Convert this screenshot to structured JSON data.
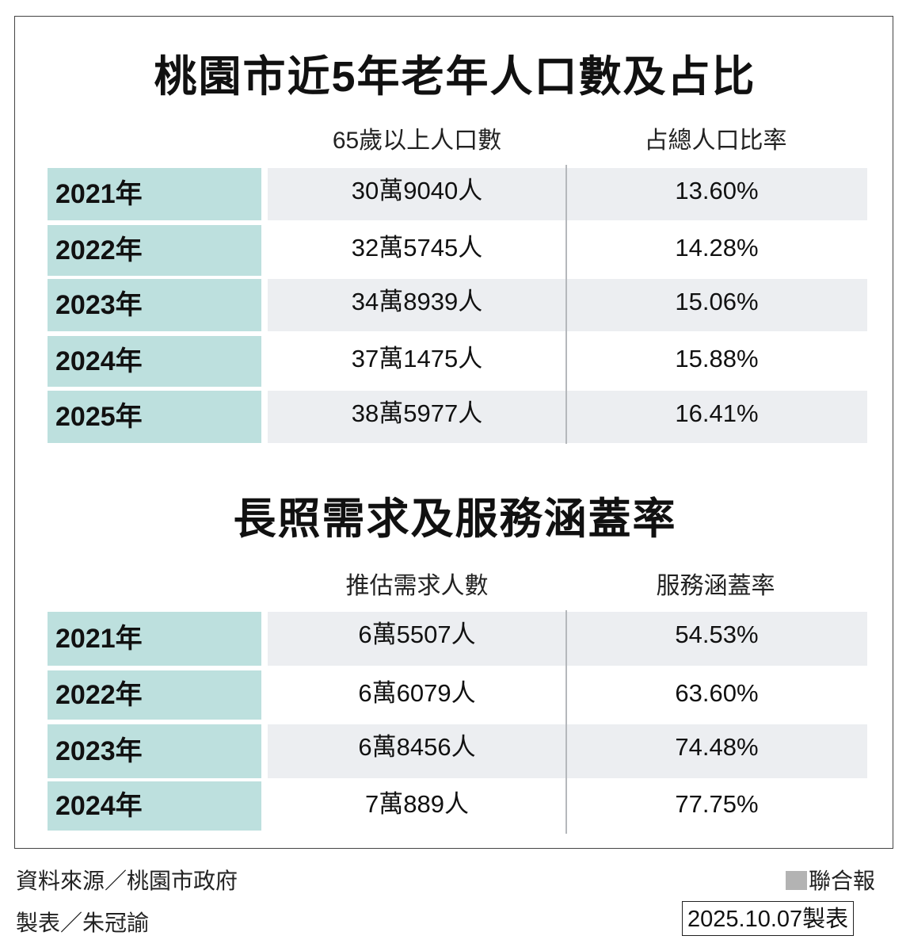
{
  "table1": {
    "title": "桃園市近5年老年人口數及占比",
    "headers": [
      "65歲以上人口數",
      "占總人口比率"
    ],
    "rows": [
      {
        "year": "2021年",
        "value": "30萬9040人",
        "ratio": "13.60%"
      },
      {
        "year": "2022年",
        "value": "32萬5745人",
        "ratio": "14.28%"
      },
      {
        "year": "2023年",
        "value": "34萬8939人",
        "ratio": "15.06%"
      },
      {
        "year": "2024年",
        "value": "37萬1475人",
        "ratio": "15.88%"
      },
      {
        "year": "2025年",
        "value": "38萬5977人",
        "ratio": "16.41%"
      }
    ]
  },
  "table2": {
    "title": "長照需求及服務涵蓋率",
    "headers": [
      "推估需求人數",
      "服務涵蓋率"
    ],
    "rows": [
      {
        "year": "2021年",
        "value": "6萬5507人",
        "ratio": "54.53%"
      },
      {
        "year": "2022年",
        "value": "6萬6079人",
        "ratio": "63.60%"
      },
      {
        "year": "2023年",
        "value": "6萬8456人",
        "ratio": "74.48%"
      },
      {
        "year": "2024年",
        "value": "7萬889人",
        "ratio": "77.75%"
      }
    ]
  },
  "colors": {
    "year_cell": "#bde0de",
    "row_shade": "#eceef1"
  },
  "footer": {
    "source": "資料來源／桃園市政府",
    "author": "製表／朱冠諭",
    "brand": "聯合報",
    "date": "2025.10.07製表"
  }
}
